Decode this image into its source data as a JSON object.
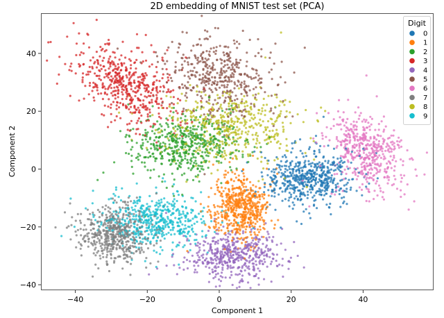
{
  "chart_data": {
    "type": "scatter",
    "title": "2D embedding of MNIST test set (PCA)",
    "xlabel": "Component 1",
    "ylabel": "Component 2",
    "xlim": [
      -50,
      59
    ],
    "ylim": [
      -42,
      54
    ],
    "xticks": [
      -40,
      -20,
      0,
      20,
      40
    ],
    "yticks": [
      40,
      20,
      0,
      -20,
      -40
    ],
    "xtick_labels": [
      "−40",
      "−20",
      "0",
      "20",
      "40"
    ],
    "ytick_labels": [
      "40",
      "20",
      "0",
      "−20",
      "−40"
    ],
    "grid": false,
    "legend": {
      "title": "Digit",
      "position": "upper right",
      "entries": [
        "0",
        "1",
        "2",
        "3",
        "4",
        "5",
        "6",
        "7",
        "8",
        "9"
      ]
    },
    "series": [
      {
        "name": "0",
        "color": "#1f77b4",
        "center": [
          25,
          -3
        ],
        "spread": [
          6.0,
          4.5
        ],
        "rho": 0.1,
        "count": 560
      },
      {
        "name": "1",
        "color": "#ff7f0e",
        "center": [
          6,
          -13
        ],
        "spread": [
          4.0,
          5.5
        ],
        "rho": 0.0,
        "count": 560
      },
      {
        "name": "2",
        "color": "#2ca02c",
        "center": [
          -10,
          8
        ],
        "spread": [
          7.5,
          5.0
        ],
        "rho": 0.0,
        "count": 520
      },
      {
        "name": "3",
        "color": "#d62728",
        "center": [
          -26,
          29
        ],
        "spread": [
          7.5,
          7.0
        ],
        "rho": -0.45,
        "count": 520
      },
      {
        "name": "4",
        "color": "#9467bd",
        "center": [
          4,
          -30
        ],
        "spread": [
          6.0,
          4.0
        ],
        "rho": 0.0,
        "count": 500
      },
      {
        "name": "5",
        "color": "#8c564b",
        "center": [
          0,
          32
        ],
        "spread": [
          7.0,
          7.0
        ],
        "rho": -0.2,
        "count": 450
      },
      {
        "name": "6",
        "color": "#e377c2",
        "center": [
          41,
          6
        ],
        "spread": [
          5.0,
          6.5
        ],
        "rho": -0.3,
        "count": 490
      },
      {
        "name": "7",
        "color": "#7f7f7f",
        "center": [
          -29,
          -22
        ],
        "spread": [
          5.0,
          5.0
        ],
        "rho": 0.0,
        "count": 520
      },
      {
        "name": "8",
        "color": "#bcbd22",
        "center": [
          3,
          14
        ],
        "spread": [
          9.0,
          6.0
        ],
        "rho": 0.0,
        "count": 490
      },
      {
        "name": "9",
        "color": "#17becf",
        "center": [
          -17,
          -18
        ],
        "spread": [
          7.0,
          4.5
        ],
        "rho": 0.0,
        "count": 510
      }
    ]
  }
}
